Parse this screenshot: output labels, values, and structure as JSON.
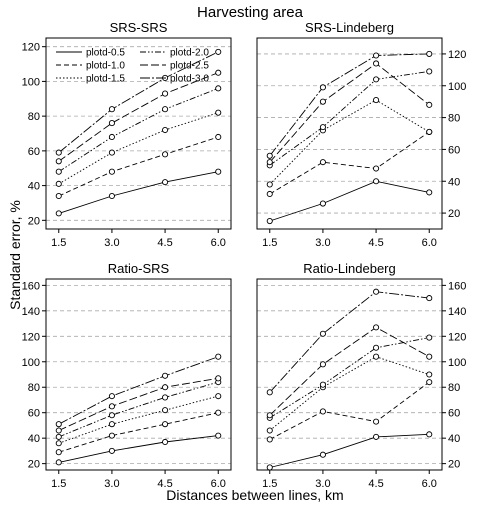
{
  "figure": {
    "title": "Harvesting area",
    "xlabel": "Distances between lines, km",
    "ylabel": "Standard error, %"
  },
  "chart_data": [
    {
      "type": "line",
      "title": "SRS-SRS",
      "x": [
        1.5,
        3.0,
        4.5,
        6.0
      ],
      "x_tick_labels": [
        "1.5",
        "3.0",
        "4.5",
        "6.0"
      ],
      "ylim": [
        15,
        125
      ],
      "y_ticks": [
        20,
        40,
        60,
        80,
        100,
        120
      ],
      "y_axis_side": "left",
      "grid": "dashed horizontal",
      "legend": "top-left",
      "series": [
        {
          "name": "plotd-0.5",
          "values": [
            24,
            34,
            42,
            48
          ]
        },
        {
          "name": "plotd-1.0",
          "values": [
            34,
            48,
            58,
            68
          ]
        },
        {
          "name": "plotd-1.5",
          "values": [
            41,
            59,
            72,
            82
          ]
        },
        {
          "name": "plotd-2.0",
          "values": [
            48,
            68,
            84,
            96
          ]
        },
        {
          "name": "plotd-2.5",
          "values": [
            54,
            76,
            93,
            105
          ]
        },
        {
          "name": "plotd-3.0",
          "values": [
            59,
            84,
            102,
            117
          ]
        }
      ]
    },
    {
      "type": "line",
      "title": "SRS-Lindeberg",
      "x": [
        1.5,
        3.0,
        4.5,
        6.0
      ],
      "x_tick_labels": [
        "1.5",
        "3.0",
        "4.5",
        "6.0"
      ],
      "ylim": [
        10,
        130
      ],
      "y_ticks": [
        20,
        40,
        60,
        80,
        100,
        120
      ],
      "y_axis_side": "right",
      "grid": "dashed horizontal",
      "series": [
        {
          "name": "plotd-0.5",
          "values": [
            15,
            26,
            40,
            33
          ]
        },
        {
          "name": "plotd-1.0",
          "values": [
            32,
            52,
            48,
            71
          ]
        },
        {
          "name": "plotd-1.5",
          "values": [
            38,
            72,
            91,
            71
          ]
        },
        {
          "name": "plotd-2.0",
          "values": [
            50,
            74,
            104,
            109
          ]
        },
        {
          "name": "plotd-2.5",
          "values": [
            52,
            90,
            114,
            88
          ]
        },
        {
          "name": "plotd-3.0",
          "values": [
            56,
            99,
            119,
            120
          ]
        }
      ]
    },
    {
      "type": "line",
      "title": "Ratio-SRS",
      "x": [
        1.5,
        3.0,
        4.5,
        6.0
      ],
      "x_tick_labels": [
        "1.5",
        "3.0",
        "4.5",
        "6.0"
      ],
      "ylim": [
        15,
        165
      ],
      "y_ticks": [
        20,
        40,
        60,
        80,
        100,
        120,
        140,
        160
      ],
      "y_axis_side": "left",
      "grid": "dashed horizontal",
      "series": [
        {
          "name": "plotd-0.5",
          "values": [
            21,
            30,
            37,
            42
          ]
        },
        {
          "name": "plotd-1.0",
          "values": [
            29,
            42,
            51,
            60
          ]
        },
        {
          "name": "plotd-1.5",
          "values": [
            36,
            51,
            62,
            73
          ]
        },
        {
          "name": "plotd-2.0",
          "values": [
            41,
            58,
            72,
            84
          ]
        },
        {
          "name": "plotd-2.5",
          "values": [
            46,
            65,
            80,
            87
          ]
        },
        {
          "name": "plotd-3.0",
          "values": [
            51,
            73,
            89,
            104
          ]
        }
      ]
    },
    {
      "type": "line",
      "title": "Ratio-Lindeberg",
      "x": [
        1.5,
        3.0,
        4.5,
        6.0
      ],
      "x_tick_labels": [
        "1.5",
        "3.0",
        "4.5",
        "6.0"
      ],
      "ylim": [
        15,
        165
      ],
      "y_ticks": [
        20,
        40,
        60,
        80,
        100,
        120,
        140,
        160
      ],
      "y_axis_side": "right",
      "grid": "dashed horizontal",
      "series": [
        {
          "name": "plotd-0.5",
          "values": [
            17,
            27,
            41,
            43
          ]
        },
        {
          "name": "plotd-1.0",
          "values": [
            39,
            61,
            53,
            84
          ]
        },
        {
          "name": "plotd-1.5",
          "values": [
            46,
            80,
            104,
            90
          ]
        },
        {
          "name": "plotd-2.0",
          "values": [
            56,
            82,
            111,
            119
          ]
        },
        {
          "name": "plotd-2.5",
          "values": [
            58,
            98,
            127,
            104
          ]
        },
        {
          "name": "plotd-3.0",
          "values": [
            76,
            122,
            155,
            150
          ]
        }
      ]
    }
  ]
}
